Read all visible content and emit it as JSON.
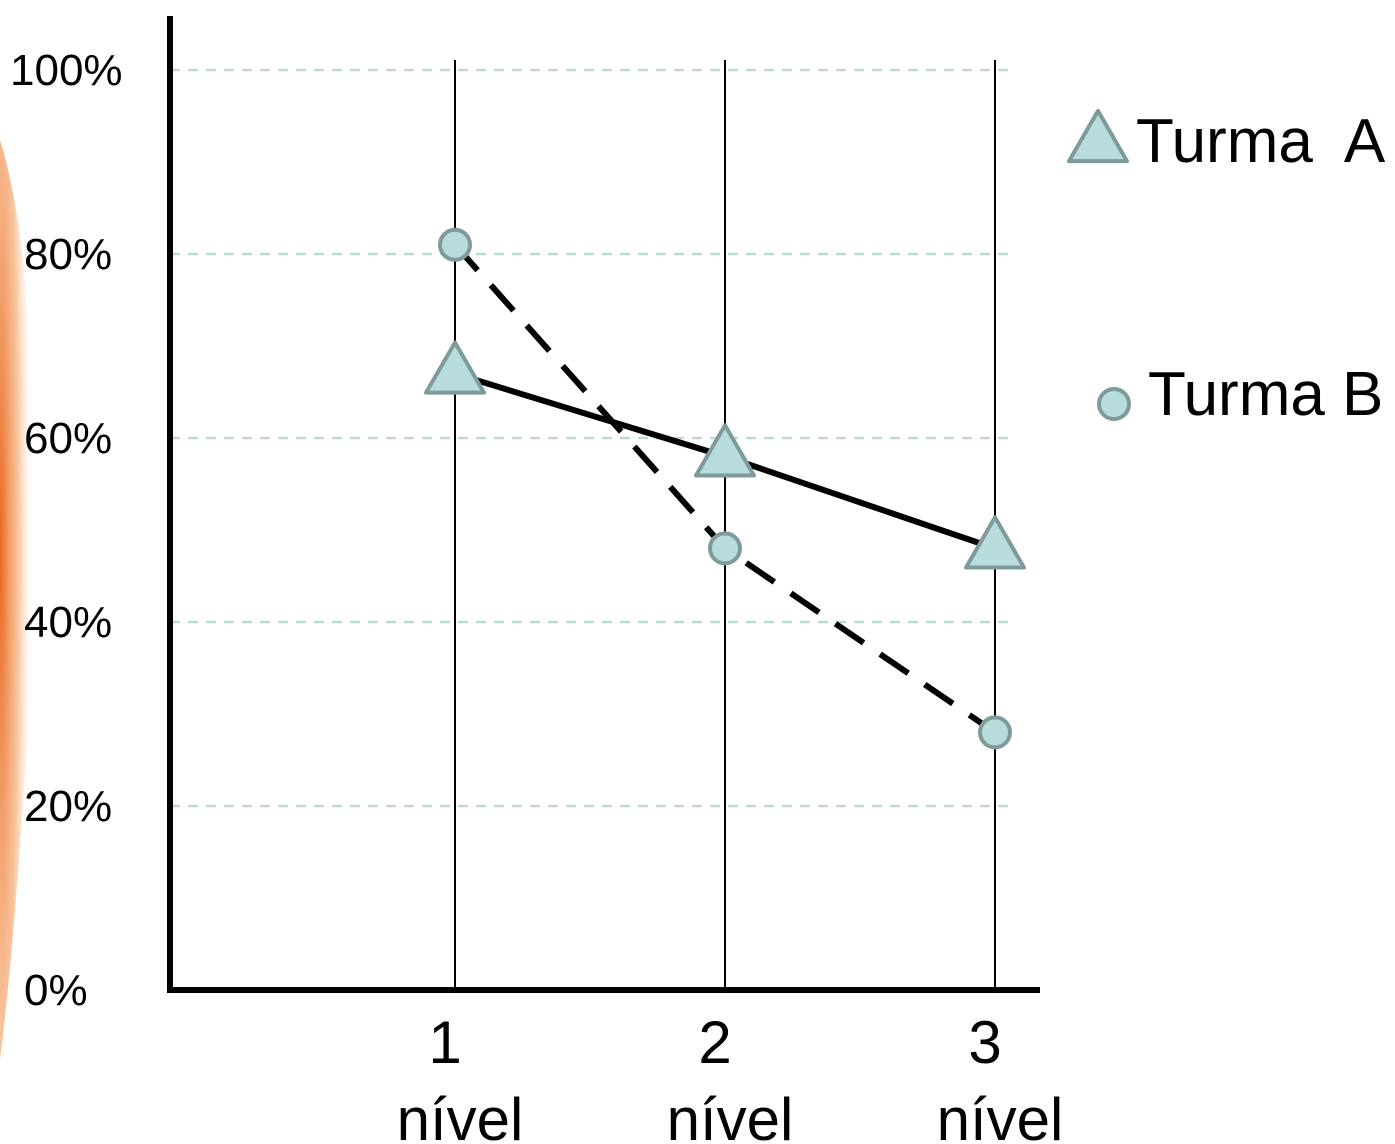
{
  "chart_data": {
    "type": "line",
    "categories": [
      "1",
      "2",
      "3"
    ],
    "category_suffix": "nível",
    "y_ticks": [
      "0%",
      "20%",
      "40%",
      "60%",
      "80%",
      "100%"
    ],
    "ylim": [
      0,
      100
    ],
    "grid": "horizontal dashed",
    "legend_position": "right",
    "series": [
      {
        "name": "Turma  A",
        "marker": "triangle",
        "line": "solid",
        "values": [
          67,
          58,
          48
        ]
      },
      {
        "name": "Turma B",
        "marker": "circle",
        "line": "dashed",
        "values": [
          81,
          48,
          28
        ]
      }
    ]
  },
  "colors": {
    "marker_fill": "#b8dcdc",
    "marker_stroke": "#7f9a9a",
    "grid": "#b9dada",
    "axis": "#000000",
    "side_accent": "#e9651d"
  }
}
